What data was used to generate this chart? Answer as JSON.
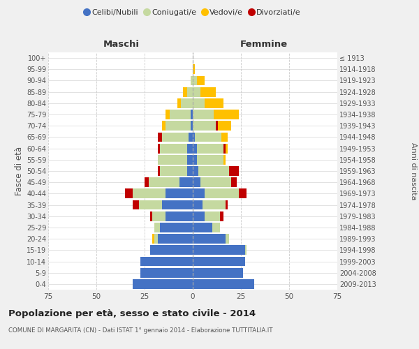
{
  "age_groups": [
    "0-4",
    "5-9",
    "10-14",
    "15-19",
    "20-24",
    "25-29",
    "30-34",
    "35-39",
    "40-44",
    "45-49",
    "50-54",
    "55-59",
    "60-64",
    "65-69",
    "70-74",
    "75-79",
    "80-84",
    "85-89",
    "90-94",
    "95-99",
    "100+"
  ],
  "birth_years": [
    "2009-2013",
    "2004-2008",
    "1999-2003",
    "1994-1998",
    "1989-1993",
    "1984-1988",
    "1979-1983",
    "1974-1978",
    "1969-1973",
    "1964-1968",
    "1959-1963",
    "1954-1958",
    "1949-1953",
    "1944-1948",
    "1939-1943",
    "1934-1938",
    "1929-1933",
    "1924-1928",
    "1919-1923",
    "1914-1918",
    "≤ 1913"
  ],
  "maschi": {
    "celibi": [
      31,
      27,
      27,
      22,
      18,
      17,
      14,
      16,
      14,
      7,
      3,
      3,
      3,
      2,
      1,
      1,
      0,
      0,
      0,
      0,
      0
    ],
    "coniugati": [
      0,
      0,
      0,
      0,
      2,
      3,
      7,
      12,
      17,
      16,
      14,
      15,
      14,
      14,
      13,
      11,
      6,
      3,
      1,
      0,
      0
    ],
    "vedovi": [
      0,
      0,
      0,
      0,
      1,
      0,
      0,
      0,
      0,
      0,
      0,
      0,
      1,
      0,
      2,
      2,
      2,
      2,
      0,
      0,
      0
    ],
    "divorziati": [
      0,
      0,
      0,
      0,
      0,
      0,
      1,
      3,
      4,
      2,
      1,
      0,
      1,
      2,
      0,
      0,
      0,
      0,
      0,
      0,
      0
    ]
  },
  "femmine": {
    "nubili": [
      32,
      26,
      27,
      27,
      17,
      10,
      6,
      5,
      6,
      4,
      3,
      2,
      2,
      1,
      0,
      0,
      0,
      0,
      0,
      0,
      0
    ],
    "coniugate": [
      0,
      0,
      0,
      1,
      2,
      4,
      8,
      12,
      18,
      16,
      16,
      14,
      14,
      14,
      12,
      11,
      6,
      4,
      2,
      0,
      0
    ],
    "vedove": [
      0,
      0,
      0,
      0,
      0,
      0,
      0,
      0,
      0,
      0,
      0,
      1,
      2,
      3,
      8,
      13,
      10,
      8,
      4,
      1,
      0
    ],
    "divorziate": [
      0,
      0,
      0,
      0,
      0,
      0,
      2,
      1,
      4,
      3,
      5,
      0,
      1,
      0,
      1,
      0,
      0,
      0,
      0,
      0,
      0
    ]
  },
  "colors": {
    "celibi": "#4472c4",
    "coniugati": "#c5d9a0",
    "vedovi": "#ffc000",
    "divorziati": "#c00000"
  },
  "xlim": 75,
  "title": "Popolazione per età, sesso e stato civile - 2014",
  "subtitle": "COMUNE DI MARGARITA (CN) - Dati ISTAT 1° gennaio 2014 - Elaborazione TUTTITALIA.IT",
  "ylabel_left": "Fasce di età",
  "ylabel_right": "Anni di nascita",
  "label_maschi": "Maschi",
  "label_femmine": "Femmine",
  "legend_labels": [
    "Celibi/Nubili",
    "Coniugati/e",
    "Vedovi/e",
    "Divorziati/e"
  ],
  "background_color": "#f0f0f0",
  "plot_bg_color": "#ffffff"
}
